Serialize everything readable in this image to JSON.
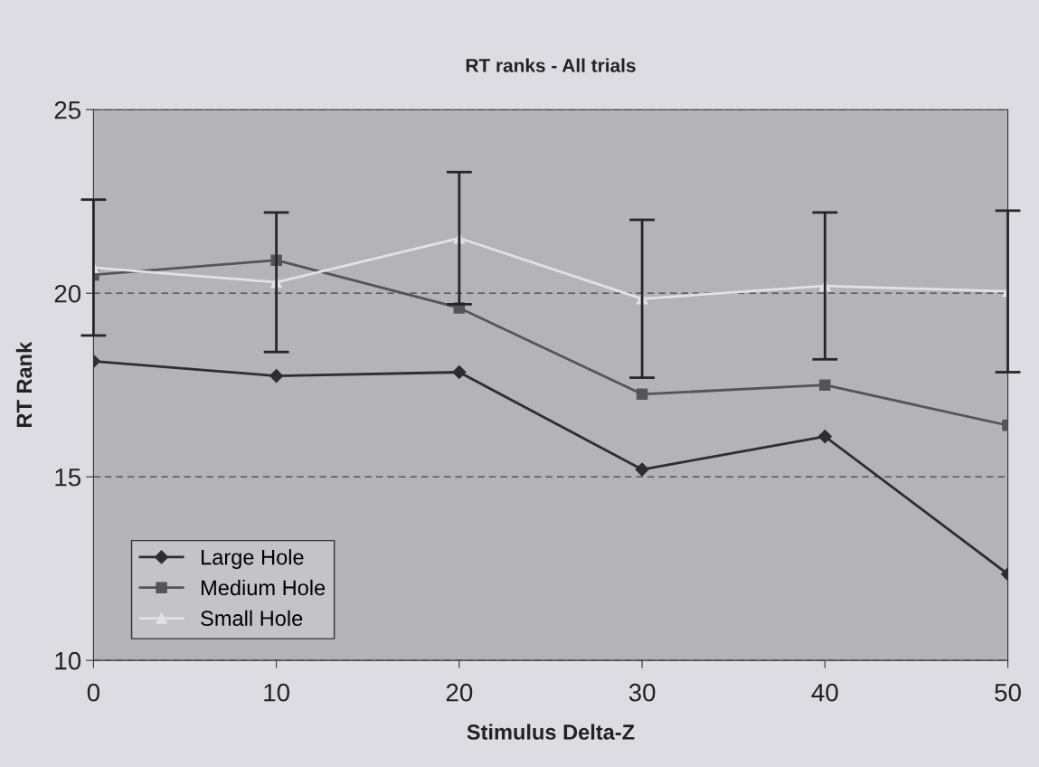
{
  "chart_data": {
    "type": "line",
    "title": "RT ranks - All trials",
    "xlabel": "Stimulus Delta-Z",
    "ylabel": "RT Rank",
    "x": [
      0,
      10,
      20,
      30,
      40,
      50
    ],
    "series": [
      {
        "name": "Large Hole",
        "color": "#2e2e2e",
        "marker": "diamond",
        "values": [
          18.15,
          17.75,
          17.85,
          15.2,
          16.1,
          12.35
        ]
      },
      {
        "name": "Medium Hole",
        "color": "#555555",
        "marker": "square",
        "values": [
          20.5,
          20.9,
          19.6,
          17.25,
          17.5,
          16.4
        ]
      },
      {
        "name": "Small Hole",
        "color": "#e2e2e2",
        "marker": "triangle",
        "values": [
          20.7,
          20.3,
          21.5,
          19.85,
          20.2,
          20.05
        ],
        "errors": [
          1.85,
          1.9,
          1.8,
          2.15,
          2.0,
          2.2
        ]
      }
    ],
    "xlim": [
      0,
      50
    ],
    "xticks": [
      0,
      10,
      20,
      30,
      40,
      50
    ],
    "ylim": [
      10,
      25
    ],
    "yticks": [
      10,
      15,
      20,
      25
    ],
    "grid": "y",
    "legend": "bottom left",
    "line_style": "solid"
  }
}
